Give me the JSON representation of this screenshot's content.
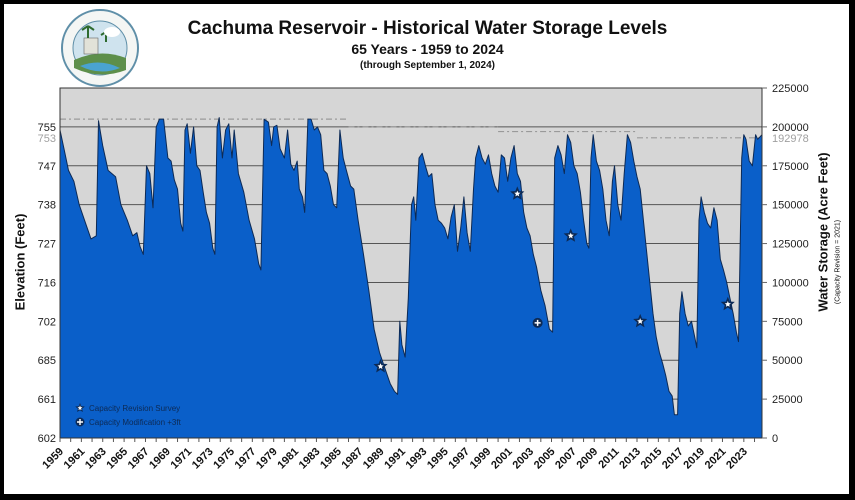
{
  "header": {
    "title": "Cachuma Reservoir - Historical Water Storage Levels",
    "subtitle": "65 Years - 1959 to 2024",
    "note": "(through September 1, 2024)",
    "logo_icon": "santa-barbara-county-flood-control-district-seal-icon",
    "logo_text_top": "SANTA BARBARA COUNTY",
    "logo_text_bottom": "FLOOD CONTROL DISTRICT"
  },
  "axes": {
    "left_title": "Elevation (Feet)",
    "right_title": "Water Storage (Acre Feet)",
    "right_subtitle": "(Capacity Revision = 2021)",
    "left_ticks": [
      {
        "label": "755",
        "storage": 200000
      },
      {
        "label": "753",
        "storage": 192978,
        "muted": true
      },
      {
        "label": "747",
        "storage": 175000
      },
      {
        "label": "738",
        "storage": 150000
      },
      {
        "label": "727",
        "storage": 125000
      },
      {
        "label": "716",
        "storage": 100000
      },
      {
        "label": "702",
        "storage": 75000
      },
      {
        "label": "685",
        "storage": 50000
      },
      {
        "label": "661",
        "storage": 25000
      },
      {
        "label": "602",
        "storage": 0
      }
    ],
    "right_ticks": [
      {
        "label": "225000",
        "value": 225000
      },
      {
        "label": "200000",
        "value": 200000
      },
      {
        "label": "192978",
        "value": 192978,
        "muted": true
      },
      {
        "label": "175000",
        "value": 175000
      },
      {
        "label": "150000",
        "value": 150000
      },
      {
        "label": "125000",
        "value": 125000
      },
      {
        "label": "100000",
        "value": 100000
      },
      {
        "label": "75000",
        "value": 75000
      },
      {
        "label": "50000",
        "value": 50000
      },
      {
        "label": "25000",
        "value": 25000
      },
      {
        "label": "0",
        "value": 0
      }
    ],
    "x_ticks": [
      "1959",
      "1961",
      "1963",
      "1965",
      "1967",
      "1969",
      "1971",
      "1973",
      "1975",
      "1977",
      "1979",
      "1981",
      "1983",
      "1985",
      "1987",
      "1989",
      "1991",
      "1993",
      "1995",
      "1997",
      "1999",
      "2001",
      "2003",
      "2005",
      "2007",
      "2009",
      "2011",
      "2013",
      "2015",
      "2017",
      "2019",
      "2021",
      "2023"
    ]
  },
  "legend": {
    "items": [
      {
        "label": "Capacity Revision Survey",
        "icon": "star-icon"
      },
      {
        "label": "Capacity Modification +3ft",
        "icon": "plus-circle-icon"
      }
    ]
  },
  "colors": {
    "fill": "#0a5fc9",
    "outline": "#0d2a55",
    "plot_bg": "#d6d6d6",
    "grid": "#555555",
    "capacity_line": "#9a9a9a",
    "muted_label": "#a0a0a0"
  },
  "chart_data": {
    "type": "area",
    "title": "Cachuma Reservoir - Historical Water Storage Levels",
    "subtitle": "65 Years - 1959 to 2024 (through September 1, 2024)",
    "xlabel": "",
    "ylabel_left": "Elevation (Feet)",
    "ylabel_right": "Water Storage (Acre Feet)",
    "ylim": [
      0,
      225000
    ],
    "xlim": [
      1959,
      2024.7
    ],
    "grid": true,
    "legend_position": "bottom-left inside plot",
    "capacity_lines": [
      {
        "from": 1959,
        "to": 1986,
        "value": 205000
      },
      {
        "from": 1986,
        "to": 2000,
        "value": 200000
      },
      {
        "from": 2000,
        "to": 2013,
        "value": 197000
      },
      {
        "from": 2013,
        "to": 2024.7,
        "value": 192978
      }
    ],
    "series": [
      {
        "name": "Water Storage (Acre Feet)",
        "points": [
          [
            1959.0,
            198000
          ],
          [
            1959.4,
            185000
          ],
          [
            1959.8,
            172000
          ],
          [
            1960.3,
            165000
          ],
          [
            1960.8,
            150000
          ],
          [
            1961.4,
            138000
          ],
          [
            1961.9,
            128000
          ],
          [
            1962.4,
            130000
          ],
          [
            1962.6,
            204000
          ],
          [
            1963.0,
            188000
          ],
          [
            1963.5,
            172000
          ],
          [
            1964.2,
            168000
          ],
          [
            1964.7,
            150000
          ],
          [
            1965.3,
            140000
          ],
          [
            1965.8,
            130000
          ],
          [
            1966.2,
            132000
          ],
          [
            1966.5,
            123000
          ],
          [
            1966.8,
            118000
          ],
          [
            1967.1,
            175000
          ],
          [
            1967.4,
            170000
          ],
          [
            1967.7,
            148000
          ],
          [
            1968.0,
            200000
          ],
          [
            1968.3,
            205000
          ],
          [
            1968.7,
            205000
          ],
          [
            1969.1,
            180000
          ],
          [
            1969.4,
            178000
          ],
          [
            1969.7,
            166000
          ],
          [
            1970.0,
            160000
          ],
          [
            1970.3,
            138000
          ],
          [
            1970.5,
            133000
          ],
          [
            1970.7,
            198000
          ],
          [
            1970.9,
            202000
          ],
          [
            1971.2,
            183000
          ],
          [
            1971.5,
            200000
          ],
          [
            1971.8,
            175000
          ],
          [
            1972.1,
            172000
          ],
          [
            1972.4,
            158000
          ],
          [
            1972.7,
            145000
          ],
          [
            1973.0,
            138000
          ],
          [
            1973.3,
            122000
          ],
          [
            1973.5,
            118000
          ],
          [
            1973.7,
            200000
          ],
          [
            1973.9,
            206000
          ],
          [
            1974.2,
            180000
          ],
          [
            1974.5,
            198000
          ],
          [
            1974.8,
            202000
          ],
          [
            1975.1,
            180000
          ],
          [
            1975.3,
            198000
          ],
          [
            1975.7,
            170000
          ],
          [
            1976.2,
            158000
          ],
          [
            1976.7,
            140000
          ],
          [
            1977.2,
            128000
          ],
          [
            1977.6,
            112000
          ],
          [
            1977.8,
            108000
          ],
          [
            1978.1,
            205000
          ],
          [
            1978.5,
            203000
          ],
          [
            1978.8,
            188000
          ],
          [
            1979.0,
            200000
          ],
          [
            1979.3,
            201000
          ],
          [
            1979.6,
            186000
          ],
          [
            1980.0,
            180000
          ],
          [
            1980.3,
            198000
          ],
          [
            1980.6,
            176000
          ],
          [
            1980.9,
            172000
          ],
          [
            1981.2,
            178000
          ],
          [
            1981.4,
            160000
          ],
          [
            1981.7,
            155000
          ],
          [
            1981.9,
            145000
          ],
          [
            1982.2,
            205000
          ],
          [
            1982.5,
            205000
          ],
          [
            1982.8,
            198000
          ],
          [
            1983.1,
            200000
          ],
          [
            1983.4,
            195000
          ],
          [
            1983.7,
            172000
          ],
          [
            1984.0,
            170000
          ],
          [
            1984.3,
            162000
          ],
          [
            1984.6,
            150000
          ],
          [
            1984.9,
            148000
          ],
          [
            1985.2,
            198000
          ],
          [
            1985.5,
            180000
          ],
          [
            1985.8,
            172000
          ],
          [
            1986.2,
            162000
          ],
          [
            1986.5,
            160000
          ],
          [
            1986.9,
            140000
          ],
          [
            1987.4,
            118000
          ],
          [
            1987.9,
            95000
          ],
          [
            1988.4,
            70000
          ],
          [
            1988.9,
            55000
          ],
          [
            1989.4,
            45000
          ],
          [
            1989.9,
            35000
          ],
          [
            1990.3,
            30000
          ],
          [
            1990.6,
            28000
          ],
          [
            1990.8,
            75000
          ],
          [
            1991.0,
            60000
          ],
          [
            1991.3,
            52000
          ],
          [
            1991.6,
            90000
          ],
          [
            1991.9,
            150000
          ],
          [
            1992.1,
            155000
          ],
          [
            1992.3,
            140000
          ],
          [
            1992.6,
            180000
          ],
          [
            1992.9,
            183000
          ],
          [
            1993.2,
            175000
          ],
          [
            1993.5,
            168000
          ],
          [
            1993.8,
            170000
          ],
          [
            1994.1,
            150000
          ],
          [
            1994.4,
            140000
          ],
          [
            1994.7,
            138000
          ],
          [
            1995.0,
            135000
          ],
          [
            1995.3,
            128000
          ],
          [
            1995.6,
            142000
          ],
          [
            1995.9,
            150000
          ],
          [
            1996.2,
            120000
          ],
          [
            1996.5,
            135000
          ],
          [
            1996.8,
            155000
          ],
          [
            1997.1,
            132000
          ],
          [
            1997.4,
            120000
          ],
          [
            1997.7,
            160000
          ],
          [
            1997.9,
            180000
          ],
          [
            1998.2,
            188000
          ],
          [
            1998.5,
            180000
          ],
          [
            1998.8,
            176000
          ],
          [
            1999.1,
            182000
          ],
          [
            1999.4,
            170000
          ],
          [
            1999.7,
            162000
          ],
          [
            2000.0,
            158000
          ],
          [
            2000.3,
            182000
          ],
          [
            2000.6,
            180000
          ],
          [
            2000.9,
            165000
          ],
          [
            2001.2,
            180000
          ],
          [
            2001.5,
            188000
          ],
          [
            2001.8,
            170000
          ],
          [
            2002.1,
            165000
          ],
          [
            2002.4,
            145000
          ],
          [
            2002.7,
            135000
          ],
          [
            2003.0,
            130000
          ],
          [
            2003.3,
            118000
          ],
          [
            2003.6,
            110000
          ],
          [
            2004.0,
            95000
          ],
          [
            2004.4,
            85000
          ],
          [
            2004.8,
            70000
          ],
          [
            2005.1,
            68000
          ],
          [
            2005.3,
            180000
          ],
          [
            2005.6,
            188000
          ],
          [
            2005.9,
            182000
          ],
          [
            2006.2,
            170000
          ],
          [
            2006.5,
            195000
          ],
          [
            2006.8,
            190000
          ],
          [
            2007.1,
            175000
          ],
          [
            2007.4,
            170000
          ],
          [
            2007.7,
            158000
          ],
          [
            2008.0,
            140000
          ],
          [
            2008.3,
            125000
          ],
          [
            2008.5,
            122000
          ],
          [
            2008.7,
            180000
          ],
          [
            2008.9,
            195000
          ],
          [
            2009.2,
            178000
          ],
          [
            2009.5,
            172000
          ],
          [
            2009.8,
            160000
          ],
          [
            2010.1,
            140000
          ],
          [
            2010.4,
            130000
          ],
          [
            2010.7,
            165000
          ],
          [
            2010.9,
            175000
          ],
          [
            2011.2,
            150000
          ],
          [
            2011.5,
            140000
          ],
          [
            2011.8,
            170000
          ],
          [
            2012.1,
            195000
          ],
          [
            2012.4,
            190000
          ],
          [
            2012.7,
            178000
          ],
          [
            2013.0,
            168000
          ],
          [
            2013.3,
            160000
          ],
          [
            2013.6,
            140000
          ],
          [
            2013.9,
            120000
          ],
          [
            2014.2,
            100000
          ],
          [
            2014.5,
            80000
          ],
          [
            2014.8,
            65000
          ],
          [
            2015.1,
            55000
          ],
          [
            2015.4,
            48000
          ],
          [
            2015.7,
            40000
          ],
          [
            2016.0,
            30000
          ],
          [
            2016.3,
            27000
          ],
          [
            2016.5,
            15000
          ],
          [
            2016.8,
            15000
          ],
          [
            2017.0,
            80000
          ],
          [
            2017.2,
            94000
          ],
          [
            2017.5,
            80000
          ],
          [
            2017.8,
            72000
          ],
          [
            2018.1,
            75000
          ],
          [
            2018.4,
            65000
          ],
          [
            2018.6,
            58000
          ],
          [
            2018.8,
            140000
          ],
          [
            2019.0,
            155000
          ],
          [
            2019.3,
            145000
          ],
          [
            2019.6,
            138000
          ],
          [
            2019.9,
            135000
          ],
          [
            2020.2,
            148000
          ],
          [
            2020.5,
            140000
          ],
          [
            2020.8,
            115000
          ],
          [
            2021.1,
            108000
          ],
          [
            2021.4,
            100000
          ],
          [
            2021.7,
            90000
          ],
          [
            2022.0,
            80000
          ],
          [
            2022.3,
            68000
          ],
          [
            2022.5,
            62000
          ],
          [
            2022.8,
            180000
          ],
          [
            2023.0,
            195000
          ],
          [
            2023.2,
            192000
          ],
          [
            2023.5,
            178000
          ],
          [
            2023.8,
            175000
          ],
          [
            2024.1,
            195000
          ],
          [
            2024.3,
            192000
          ],
          [
            2024.7,
            195000
          ]
        ]
      }
    ],
    "markers": [
      {
        "type": "Capacity Revision Survey",
        "x": 1989.0,
        "y": 46000
      },
      {
        "type": "Capacity Revision Survey",
        "x": 2001.8,
        "y": 157000
      },
      {
        "type": "Capacity Modification +3ft",
        "x": 2003.7,
        "y": 74000
      },
      {
        "type": "Capacity Revision Survey",
        "x": 2006.8,
        "y": 130000
      },
      {
        "type": "Capacity Revision Survey",
        "x": 2013.3,
        "y": 75000
      },
      {
        "type": "Capacity Revision Survey",
        "x": 2021.5,
        "y": 86000
      }
    ]
  }
}
